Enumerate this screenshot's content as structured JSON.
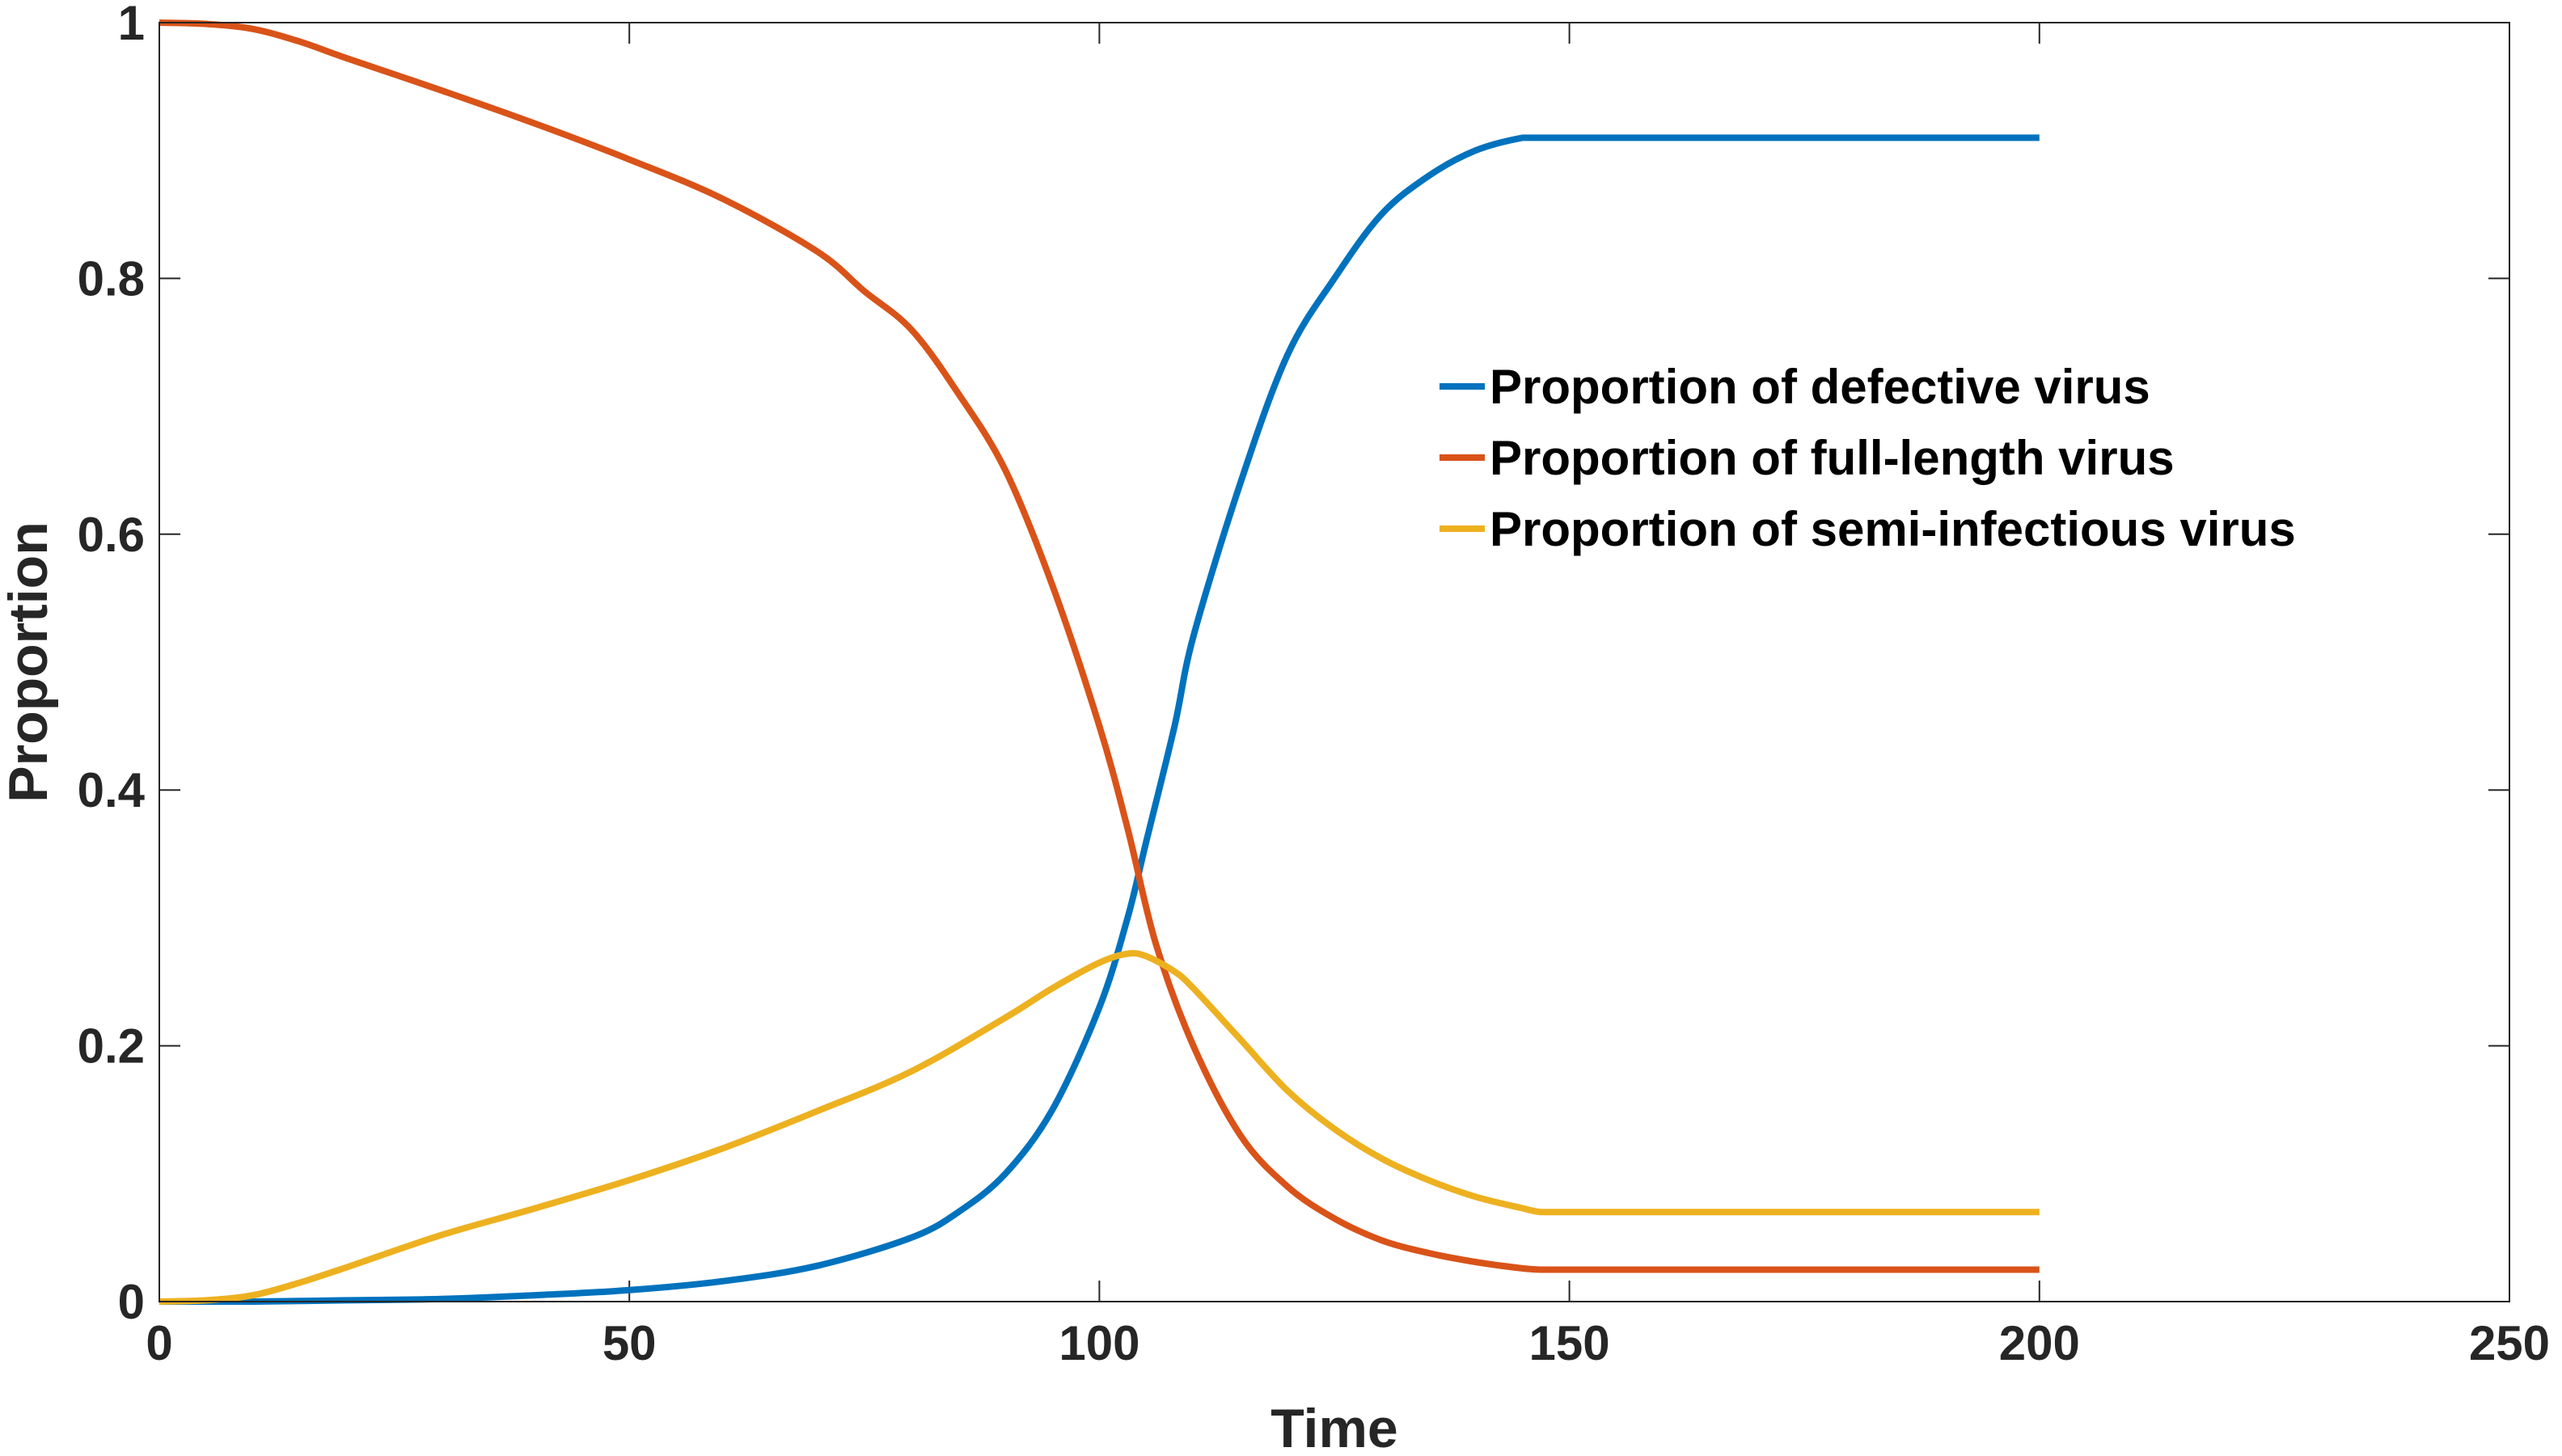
{
  "chart_data": {
    "type": "line",
    "xlabel": "Time",
    "ylabel": "Proportion",
    "xlim": [
      0,
      250
    ],
    "ylim": [
      0,
      1
    ],
    "xticks": [
      0,
      50,
      100,
      150,
      200,
      250
    ],
    "yticks": [
      0,
      0.2,
      0.4,
      0.6,
      0.8,
      1
    ],
    "xtick_labels": [
      "0",
      "50",
      "100",
      "150",
      "200",
      "250"
    ],
    "ytick_labels": [
      "0",
      "0.2",
      "0.4",
      "0.6",
      "0.8",
      "1"
    ],
    "grid": false,
    "legend_position": "right",
    "series": [
      {
        "name": "Proportion of defective virus",
        "color": "#0072BD",
        "x": [
          0,
          10,
          20,
          30,
          40,
          50,
          60,
          70,
          80,
          85,
          90,
          95,
          100,
          103,
          105,
          108,
          110,
          115,
          120,
          125,
          130,
          135,
          140,
          145,
          147,
          150,
          160,
          170,
          180,
          190,
          200
        ],
        "y": [
          0,
          0,
          0.001,
          0.002,
          0.005,
          0.009,
          0.016,
          0.028,
          0.05,
          0.07,
          0.1,
          0.15,
          0.23,
          0.3,
          0.36,
          0.45,
          0.52,
          0.64,
          0.74,
          0.8,
          0.85,
          0.88,
          0.9,
          0.91,
          0.91,
          0.91,
          0.91,
          0.91,
          0.91,
          0.91,
          0.91
        ]
      },
      {
        "name": "Proportion of full-length virus",
        "color": "#D95319",
        "x": [
          0,
          5,
          10,
          15,
          20,
          30,
          40,
          50,
          60,
          70,
          75,
          80,
          85,
          90,
          95,
          100,
          103,
          106,
          110,
          115,
          120,
          125,
          130,
          135,
          140,
          145,
          147,
          150,
          160,
          170,
          180,
          190,
          200
        ],
        "y": [
          1,
          0.999,
          0.995,
          0.985,
          0.972,
          0.947,
          0.921,
          0.893,
          0.862,
          0.821,
          0.79,
          0.76,
          0.71,
          0.65,
          0.56,
          0.45,
          0.37,
          0.28,
          0.2,
          0.13,
          0.09,
          0.065,
          0.048,
          0.038,
          0.031,
          0.026,
          0.025,
          0.025,
          0.025,
          0.025,
          0.025,
          0.025,
          0.025
        ]
      },
      {
        "name": "Proportion of semi-infectious virus",
        "color": "#EDB120",
        "x": [
          0,
          5,
          10,
          15,
          20,
          30,
          40,
          50,
          60,
          70,
          80,
          90,
          95,
          100,
          103,
          105,
          108,
          110,
          115,
          120,
          125,
          130,
          135,
          140,
          145,
          147,
          150,
          160,
          170,
          180,
          190,
          200
        ],
        "y": [
          0,
          0.001,
          0.005,
          0.015,
          0.027,
          0.052,
          0.073,
          0.095,
          0.12,
          0.149,
          0.18,
          0.222,
          0.245,
          0.265,
          0.272,
          0.27,
          0.258,
          0.245,
          0.205,
          0.165,
          0.135,
          0.112,
          0.095,
          0.082,
          0.073,
          0.07,
          0.07,
          0.07,
          0.07,
          0.07,
          0.07,
          0.07
        ]
      }
    ]
  }
}
